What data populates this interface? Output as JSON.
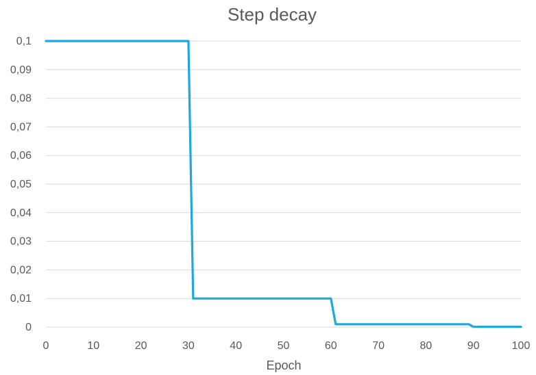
{
  "chart_data": {
    "type": "line",
    "title": "Step decay",
    "xlabel": "Epoch",
    "ylabel": "",
    "xlim": [
      0,
      100
    ],
    "ylim": [
      0,
      0.1
    ],
    "x_ticks": [
      0,
      10,
      20,
      30,
      40,
      50,
      60,
      70,
      80,
      90,
      100
    ],
    "y_ticks": [
      0,
      0.01,
      0.02,
      0.03,
      0.04,
      0.05,
      0.06,
      0.07,
      0.08,
      0.09,
      0.1
    ],
    "x_tick_labels": [
      "0",
      "10",
      "20",
      "30",
      "40",
      "50",
      "60",
      "70",
      "80",
      "90",
      "100"
    ],
    "y_tick_labels": [
      "0",
      "0,01",
      "0,02",
      "0,03",
      "0,04",
      "0,05",
      "0,06",
      "0,07",
      "0,08",
      "0,09",
      "0,1"
    ],
    "grid": "horizontal",
    "legend": "none",
    "series": [
      {
        "color": "#1ea7e0",
        "x": [
          0,
          30,
          31,
          60,
          61,
          89,
          90,
          100
        ],
        "y": [
          0.1,
          0.1,
          0.01,
          0.01,
          0.001,
          0.001,
          0.0001,
          0.0001
        ]
      }
    ]
  }
}
